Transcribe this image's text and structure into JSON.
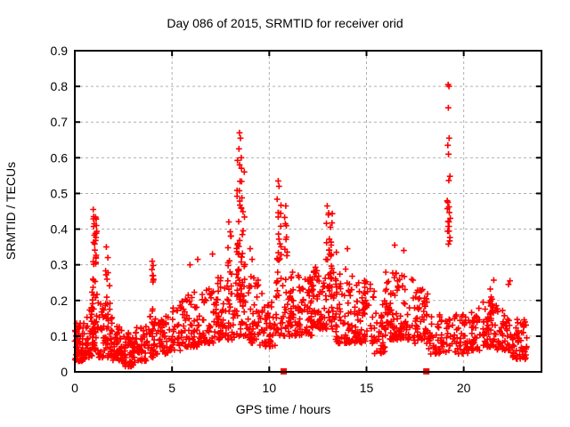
{
  "title": "Day 086 of 2015, SRMTID for receiver orid",
  "chart_data": {
    "type": "scatter",
    "title": "Day 086 of 2015, SRMTID for receiver orid",
    "xlabel": "GPS time / hours",
    "ylabel": "SRMTID / TECUs",
    "xlim": [
      0,
      24
    ],
    "ylim": [
      0,
      0.9
    ],
    "xticks": [
      0,
      5,
      10,
      15,
      20
    ],
    "xtick_labels": [
      "0",
      "5",
      "10",
      "15",
      "20"
    ],
    "yticks": [
      0,
      0.1,
      0.2,
      0.3,
      0.4,
      0.5,
      0.6,
      0.7,
      0.8,
      0.9
    ],
    "ytick_labels": [
      "0",
      "0.1",
      "0.2",
      "0.3",
      "0.4",
      "0.5",
      "0.6",
      "0.7",
      "0.8",
      "0.9"
    ],
    "grid": true,
    "legend": "none",
    "marker": "plus",
    "marker_color": "#ff0000",
    "grid_color": "#b0b0b0",
    "border_color": "#000000",
    "seed": 1386,
    "zero_square_markers_x": [
      10.74,
      18.08
    ],
    "peak_points": [
      [
        0.95,
        0.455
      ],
      [
        0.97,
        0.435
      ],
      [
        1.0,
        0.415
      ],
      [
        1.62,
        0.35
      ],
      [
        1.7,
        0.32
      ],
      [
        3.98,
        0.31
      ],
      [
        4.03,
        0.27
      ],
      [
        5.92,
        0.3
      ],
      [
        6.32,
        0.315
      ],
      [
        7.08,
        0.33
      ],
      [
        7.92,
        0.42
      ],
      [
        8.02,
        0.38
      ],
      [
        8.47,
        0.67
      ],
      [
        8.52,
        0.655
      ],
      [
        8.44,
        0.625
      ],
      [
        8.56,
        0.6
      ],
      [
        9.02,
        0.345
      ],
      [
        9.12,
        0.315
      ],
      [
        10.46,
        0.535
      ],
      [
        10.5,
        0.52
      ],
      [
        10.85,
        0.465
      ],
      [
        12.98,
        0.465
      ],
      [
        13.04,
        0.44
      ],
      [
        13.45,
        0.335
      ],
      [
        14.02,
        0.345
      ],
      [
        16.45,
        0.355
      ],
      [
        16.92,
        0.34
      ],
      [
        19.2,
        0.805
      ],
      [
        19.24,
        0.8
      ],
      [
        19.21,
        0.74
      ],
      [
        19.25,
        0.655
      ],
      [
        19.18,
        0.635
      ],
      [
        19.22,
        0.61
      ],
      [
        22.3,
        0.245
      ],
      [
        22.38,
        0.255
      ]
    ],
    "noise_bands_format": [
      "h_start",
      "h_end",
      "count",
      "y_min",
      "y_max",
      "skew_exponent"
    ],
    "noise_bands": [
      [
        0.0,
        0.55,
        65,
        0.03,
        0.14,
        1.6
      ],
      [
        0.55,
        0.9,
        35,
        0.04,
        0.2,
        1.6
      ],
      [
        0.9,
        1.2,
        20,
        0.06,
        0.16,
        1.5
      ],
      [
        1.2,
        1.55,
        30,
        0.04,
        0.2,
        1.7
      ],
      [
        1.55,
        1.95,
        30,
        0.04,
        0.2,
        1.7
      ],
      [
        1.95,
        2.45,
        45,
        0.03,
        0.13,
        1.6
      ],
      [
        2.45,
        3.1,
        55,
        0.015,
        0.11,
        1.5
      ],
      [
        3.1,
        3.8,
        45,
        0.03,
        0.13,
        1.6
      ],
      [
        3.8,
        4.2,
        28,
        0.04,
        0.16,
        1.6
      ],
      [
        4.2,
        4.85,
        40,
        0.05,
        0.17,
        1.6
      ],
      [
        4.85,
        5.6,
        45,
        0.06,
        0.2,
        1.7
      ],
      [
        5.6,
        6.5,
        55,
        0.07,
        0.23,
        1.7
      ],
      [
        6.5,
        7.3,
        55,
        0.08,
        0.24,
        1.7
      ],
      [
        7.3,
        8.25,
        65,
        0.09,
        0.27,
        1.6
      ],
      [
        8.25,
        8.85,
        30,
        0.1,
        0.26,
        1.5
      ],
      [
        8.85,
        9.45,
        45,
        0.08,
        0.27,
        1.6
      ],
      [
        9.45,
        10.3,
        50,
        0.07,
        0.22,
        1.6
      ],
      [
        10.3,
        10.75,
        20,
        0.1,
        0.26,
        1.5
      ],
      [
        10.75,
        11.25,
        40,
        0.1,
        0.28,
        1.6
      ],
      [
        11.25,
        12.25,
        80,
        0.1,
        0.27,
        1.6
      ],
      [
        12.25,
        12.9,
        50,
        0.12,
        0.3,
        1.5
      ],
      [
        12.9,
        13.35,
        25,
        0.12,
        0.28,
        1.5
      ],
      [
        13.35,
        14.55,
        85,
        0.08,
        0.29,
        1.6
      ],
      [
        14.55,
        15.4,
        60,
        0.08,
        0.26,
        1.6
      ],
      [
        15.4,
        15.95,
        35,
        0.05,
        0.2,
        1.6
      ],
      [
        15.95,
        17.45,
        105,
        0.09,
        0.28,
        1.6
      ],
      [
        17.45,
        18.2,
        55,
        0.08,
        0.24,
        1.6
      ],
      [
        18.2,
        19.1,
        45,
        0.05,
        0.17,
        1.6
      ],
      [
        19.1,
        19.45,
        15,
        0.06,
        0.15,
        1.5
      ],
      [
        19.45,
        20.25,
        40,
        0.05,
        0.16,
        1.6
      ],
      [
        20.25,
        20.95,
        40,
        0.06,
        0.18,
        1.6
      ],
      [
        20.95,
        21.7,
        50,
        0.07,
        0.2,
        1.6
      ],
      [
        21.7,
        22.5,
        45,
        0.06,
        0.18,
        1.6
      ],
      [
        22.5,
        23.25,
        55,
        0.035,
        0.15,
        1.5
      ]
    ],
    "spike_chains_format": [
      "h_start",
      "h_end",
      "count",
      "y_min",
      "y_max"
    ],
    "spike_chains": [
      [
        0.88,
        1.14,
        42,
        0.1,
        0.44
      ],
      [
        1.58,
        1.8,
        12,
        0.12,
        0.33
      ],
      [
        3.95,
        4.12,
        10,
        0.1,
        0.3
      ],
      [
        7.85,
        8.15,
        8,
        0.25,
        0.4
      ],
      [
        8.32,
        8.75,
        50,
        0.18,
        0.62
      ],
      [
        10.4,
        10.62,
        20,
        0.25,
        0.515
      ],
      [
        10.78,
        10.93,
        8,
        0.3,
        0.455
      ],
      [
        12.92,
        13.25,
        26,
        0.2,
        0.45
      ],
      [
        19.15,
        19.32,
        18,
        0.34,
        0.555
      ],
      [
        21.28,
        21.55,
        12,
        0.16,
        0.26
      ]
    ]
  }
}
